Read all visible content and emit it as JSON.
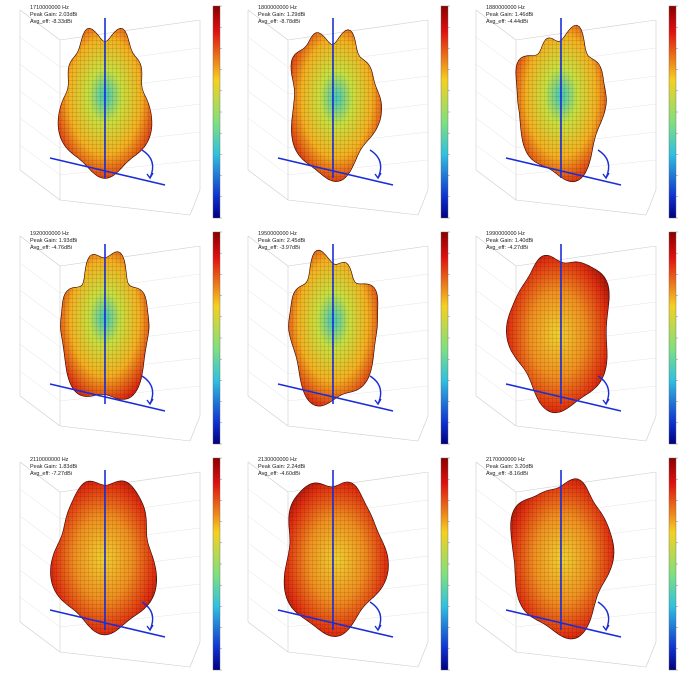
{
  "panels": [
    {
      "lines": [
        "1710000000 Hz",
        "Peak Gain: 2.03dBi",
        "Avg_eff: -8.33dBi"
      ]
    },
    {
      "lines": [
        "1800000000 Hz",
        "Peak Gain: 1.29dBi",
        "Avg_eff: -8.78dBi"
      ]
    },
    {
      "lines": [
        "1880000000 Hz",
        "Peak Gain: 1.46dBi",
        "Avg_eff: -4.44dBi"
      ]
    },
    {
      "lines": [
        "1920000000 Hz",
        "Peak Gain: 1.93dBi",
        "Avg_eff: -4.76dBi"
      ]
    },
    {
      "lines": [
        "1950000000 Hz",
        "Peak Gain: 2.45dBi",
        "Avg_eff: -3.97dBi"
      ]
    },
    {
      "lines": [
        "1990000000 Hz",
        "Peak Gain: 1.40dBi",
        "Avg_eff: -4.27dBi"
      ]
    },
    {
      "lines": [
        "2110000000 Hz",
        "Peak Gain: 1.83dBi",
        "Avg_eff: -7.27dBi"
      ]
    },
    {
      "lines": [
        "2130000000 Hz",
        "Peak Gain: 2.24dBi",
        "Avg_eff: -4.60dBi"
      ]
    },
    {
      "lines": [
        "2170000000 Hz",
        "Peak Gain: 3.20dBi",
        "Avg_eff: -8.16dBi"
      ]
    }
  ]
}
